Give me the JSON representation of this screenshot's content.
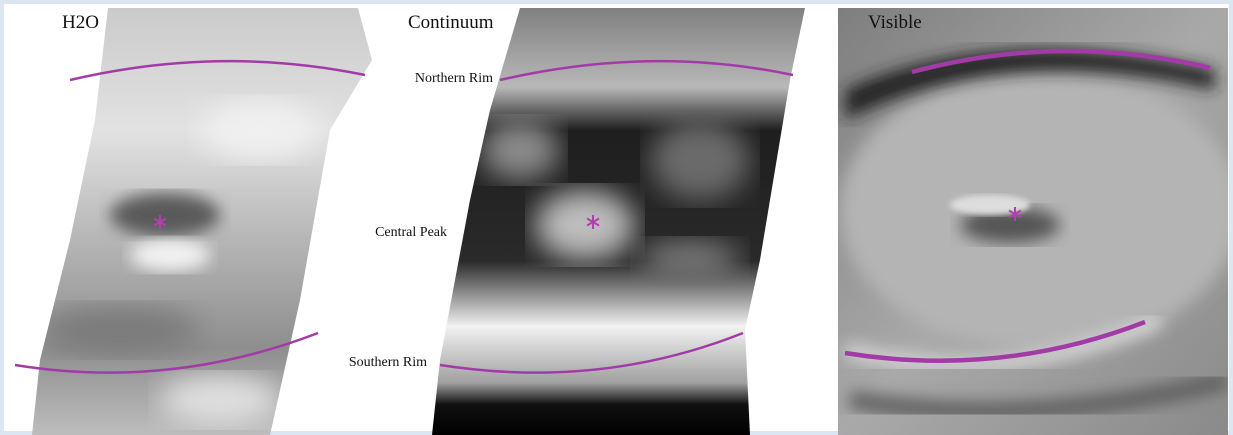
{
  "panels": [
    {
      "title": "H2O"
    },
    {
      "title": "Continuum",
      "labels": [
        "Northern Rim",
        "Central Peak",
        "Southern Rim"
      ]
    },
    {
      "title": "Visible"
    }
  ]
}
